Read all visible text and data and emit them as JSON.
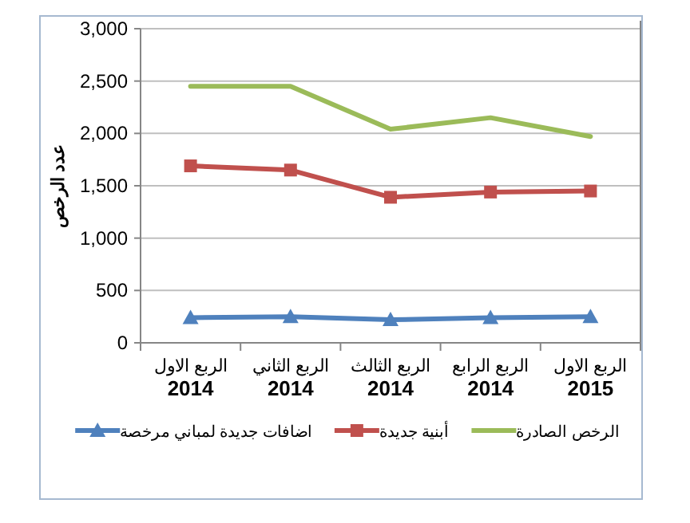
{
  "chart_data": {
    "type": "line",
    "ylabel": "عدد الرخص",
    "categories": [
      "الربع الاول\n2014",
      "الربع الثاني\n2014",
      "الربع الثالث\n2014",
      "الربع الرابع\n2014",
      "الربع الاول\n2015"
    ],
    "series": [
      {
        "name": "الرخص الصادرة",
        "color": "#9bbb59",
        "marker": "none",
        "values": [
          2450,
          2450,
          2040,
          2150,
          1970
        ]
      },
      {
        "name": "أبنية جديدة",
        "color": "#c0504d",
        "marker": "square",
        "values": [
          1690,
          1650,
          1390,
          1440,
          1450
        ]
      },
      {
        "name": "اضافات جديدة لمباني مرخصة",
        "color": "#4f81bd",
        "marker": "triangle",
        "values": [
          240,
          250,
          220,
          240,
          250
        ]
      }
    ],
    "ylim": [
      0,
      3000
    ],
    "yticks": [
      {
        "value": 0,
        "label": "0"
      },
      {
        "value": 500,
        "label": "500"
      },
      {
        "value": 1000,
        "label": "1,000"
      },
      {
        "value": 1500,
        "label": "1,500"
      },
      {
        "value": 2000,
        "label": "2,000"
      },
      {
        "value": 2500,
        "label": "2,500"
      },
      {
        "value": 3000,
        "label": "3,000"
      }
    ],
    "grid": "y",
    "legend": "bottom"
  }
}
